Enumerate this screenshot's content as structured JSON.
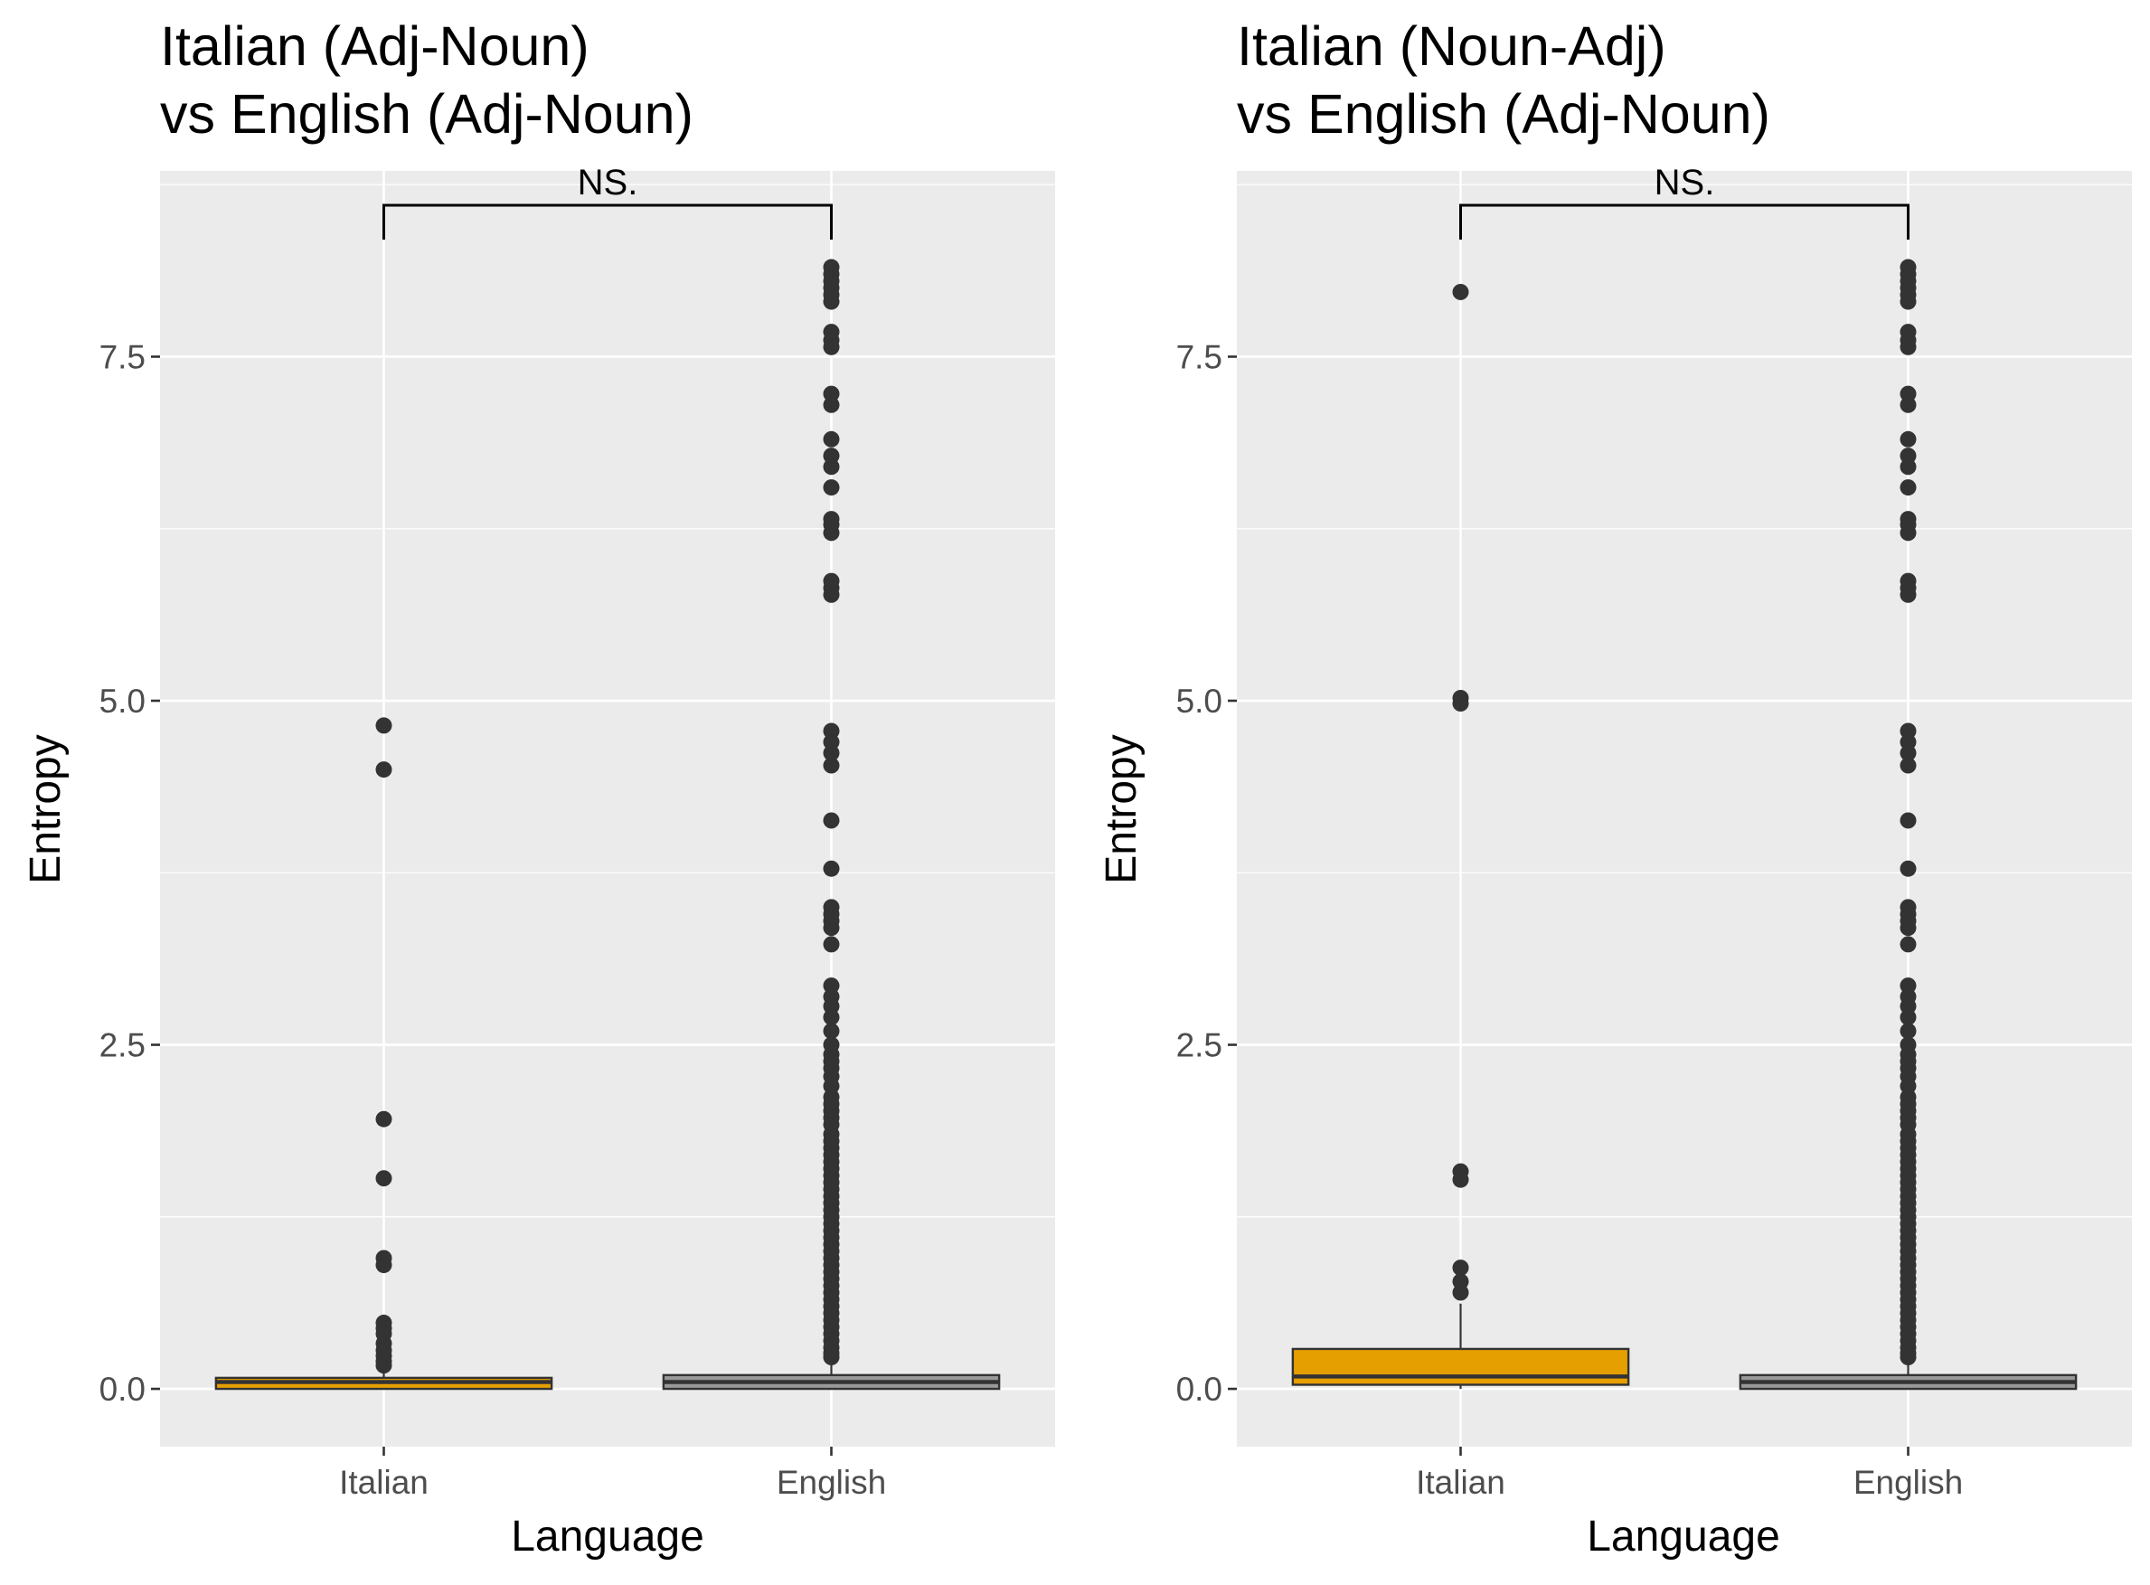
{
  "colors": {
    "panel_background": "#ebebeb",
    "gridline": "#ffffff",
    "italian_fill": "#E69F00",
    "english_fill": "#999999",
    "outline": "#333333",
    "outlier": "#333333",
    "tick_text": "#4d4d4d"
  },
  "chart_data": [
    {
      "type": "boxplot",
      "title_lines": [
        "Italian (Adj-Noun)",
        "vs English (Adj-Noun)"
      ],
      "xlabel": "Language",
      "ylabel": "Entropy",
      "categories": [
        "Italian",
        "English"
      ],
      "ylim": [
        -0.42,
        8.85
      ],
      "yticks": [
        0.0,
        2.5,
        5.0,
        7.5
      ],
      "ytick_labels": [
        "0.0",
        "2.5",
        "5.0",
        "7.5"
      ],
      "grid": true,
      "legend": "none",
      "significance": {
        "label": "NS.",
        "y": 8.6,
        "from": "Italian",
        "to": "English"
      },
      "boxes": [
        {
          "category": "Italian",
          "min": 0.0,
          "q1": 0.0,
          "median": 0.05,
          "q3": 0.08,
          "max": 0.13,
          "fill": "#E69F00",
          "outliers": [
            4.82,
            4.5,
            1.96,
            1.53,
            0.95,
            0.9,
            0.48,
            0.44,
            0.4,
            0.33,
            0.28,
            0.24,
            0.2,
            0.17
          ]
        },
        {
          "category": "English",
          "min": 0.0,
          "q1": 0.0,
          "median": 0.05,
          "q3": 0.1,
          "max": 0.2,
          "fill": "#999999",
          "outliers": [
            8.15,
            8.1,
            8.05,
            8.0,
            7.95,
            7.9,
            7.68,
            7.62,
            7.57,
            7.23,
            7.15,
            6.9,
            6.78,
            6.7,
            6.55,
            6.32,
            6.28,
            6.22,
            5.87,
            5.82,
            5.77,
            4.78,
            4.7,
            4.62,
            4.53,
            4.13,
            3.78,
            3.5,
            3.45,
            3.4,
            3.35,
            3.23,
            2.93,
            2.85,
            2.78,
            2.7,
            2.6,
            2.5,
            2.43,
            2.38,
            2.33,
            2.27,
            2.2,
            2.12,
            2.07,
            2.02,
            1.97,
            1.92,
            1.85,
            1.8,
            1.75,
            1.7,
            1.65,
            1.6,
            1.55,
            1.5,
            1.45,
            1.4,
            1.35,
            1.3,
            1.25,
            1.2,
            1.15,
            1.1,
            1.05,
            1.0,
            0.95,
            0.9,
            0.85,
            0.8,
            0.75,
            0.7,
            0.65,
            0.6,
            0.55,
            0.5,
            0.45,
            0.4,
            0.35,
            0.3,
            0.26,
            0.23
          ]
        }
      ]
    },
    {
      "type": "boxplot",
      "title_lines": [
        "Italian (Noun-Adj)",
        "vs English (Adj-Noun)"
      ],
      "xlabel": "Language",
      "ylabel": "Entropy",
      "categories": [
        "Italian",
        "English"
      ],
      "ylim": [
        -0.42,
        8.85
      ],
      "yticks": [
        0.0,
        2.5,
        5.0,
        7.5
      ],
      "ytick_labels": [
        "0.0",
        "2.5",
        "5.0",
        "7.5"
      ],
      "grid": true,
      "legend": "none",
      "significance": {
        "label": "NS.",
        "y": 8.6,
        "from": "Italian",
        "to": "English"
      },
      "boxes": [
        {
          "category": "Italian",
          "min": 0.0,
          "q1": 0.03,
          "median": 0.09,
          "q3": 0.29,
          "max": 0.62,
          "fill": "#E69F00",
          "outliers": [
            7.97,
            5.02,
            4.98,
            1.58,
            1.52,
            0.88,
            0.78,
            0.7
          ]
        },
        {
          "category": "English",
          "min": 0.0,
          "q1": 0.0,
          "median": 0.05,
          "q3": 0.1,
          "max": 0.2,
          "fill": "#999999",
          "outliers": [
            8.15,
            8.1,
            8.05,
            8.0,
            7.95,
            7.9,
            7.68,
            7.62,
            7.57,
            7.23,
            7.15,
            6.9,
            6.78,
            6.7,
            6.55,
            6.32,
            6.28,
            6.22,
            5.87,
            5.82,
            5.77,
            4.78,
            4.7,
            4.62,
            4.53,
            4.13,
            3.78,
            3.5,
            3.45,
            3.4,
            3.35,
            3.23,
            2.93,
            2.85,
            2.78,
            2.7,
            2.6,
            2.5,
            2.43,
            2.38,
            2.33,
            2.27,
            2.2,
            2.12,
            2.07,
            2.02,
            1.97,
            1.92,
            1.85,
            1.8,
            1.75,
            1.7,
            1.65,
            1.6,
            1.55,
            1.5,
            1.45,
            1.4,
            1.35,
            1.3,
            1.25,
            1.2,
            1.15,
            1.1,
            1.05,
            1.0,
            0.95,
            0.9,
            0.85,
            0.8,
            0.75,
            0.7,
            0.65,
            0.6,
            0.55,
            0.5,
            0.45,
            0.4,
            0.35,
            0.3,
            0.26,
            0.23
          ]
        }
      ]
    }
  ]
}
